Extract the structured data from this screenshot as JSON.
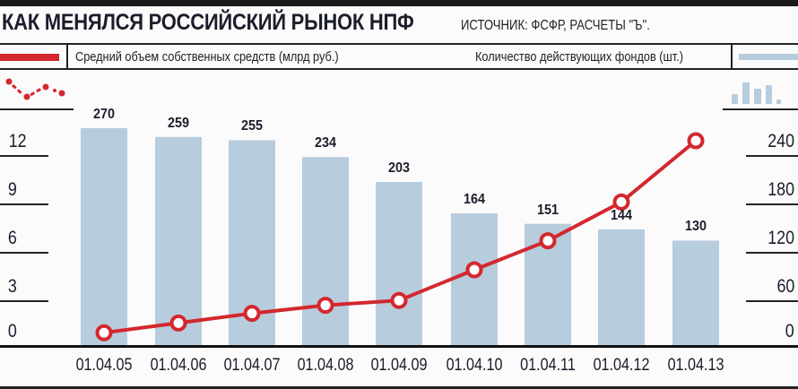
{
  "header": {
    "title": "КАК МЕНЯЛСЯ РОССИЙСКИЙ РЫНОК НПФ",
    "source": "ИСТОЧНИК: ФСФР, РАСЧЕТЫ \"Ъ\"."
  },
  "legend": {
    "line_label": "Средний объем собственных средств (млрд руб.)",
    "bar_label": "Количество действующих фондов (шт.)"
  },
  "colors": {
    "line": "#d3282e",
    "bar": "#b7ccdd",
    "text": "#1b1d2b"
  },
  "left_axis": {
    "ticks": [
      "12",
      "9",
      "6",
      "3",
      "0"
    ]
  },
  "right_axis": {
    "ticks": [
      "240",
      "180",
      "120",
      "60",
      "0"
    ]
  },
  "x_labels": [
    "01.04.05",
    "01.04.06",
    "01.04.07",
    "01.04.08",
    "01.04.09",
    "01.04.10",
    "01.04.11",
    "01.04.12",
    "01.04.13"
  ],
  "bar_labels": [
    "270",
    "259",
    "255",
    "234",
    "203",
    "164",
    "151",
    "144",
    "130"
  ],
  "chart_data": {
    "type": "bar+line",
    "title": "КАК МЕНЯЛСЯ РОССИЙСКИЙ РЫНОК НПФ",
    "subtitle": "ИСТОЧНИК: ФСФР, РАСЧЕТЫ \"Ъ\".",
    "categories": [
      "01.04.05",
      "01.04.06",
      "01.04.07",
      "01.04.08",
      "01.04.09",
      "01.04.10",
      "01.04.11",
      "01.04.12",
      "01.04.13"
    ],
    "series": [
      {
        "name": "Количество действующих фондов (шт.)",
        "type": "bar",
        "axis": "right",
        "values": [
          270,
          259,
          255,
          234,
          203,
          164,
          151,
          144,
          130
        ]
      },
      {
        "name": "Средний объем собственных средств (млрд руб.)",
        "type": "line",
        "axis": "left",
        "values": [
          0.1,
          0.7,
          1.3,
          1.8,
          2.1,
          4.0,
          5.8,
          8.2,
          12.0
        ]
      }
    ],
    "left_axis": {
      "ticks": [
        0,
        3,
        6,
        9,
        12
      ],
      "ylim": [
        0,
        13
      ]
    },
    "right_axis": {
      "ticks": [
        0,
        60,
        120,
        180,
        240
      ],
      "ylim": [
        0,
        270
      ]
    },
    "xlabel": "",
    "ylabel": "",
    "grid": false,
    "legend_position": "top"
  }
}
